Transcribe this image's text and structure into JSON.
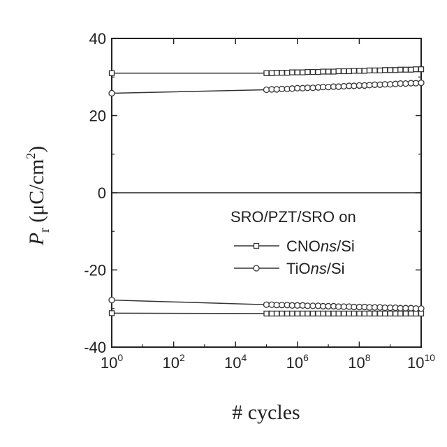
{
  "chart_data": {
    "type": "line",
    "xscale": "log",
    "xlabel": "# cycles",
    "ylabel": {
      "main": "P",
      "sub": "r",
      "unit": " (μC/cm",
      "unit_sup": "2",
      "unit_end": ")"
    },
    "xlim_log10": [
      0,
      10
    ],
    "ylim": [
      -40,
      40
    ],
    "xticks": [
      {
        "base": "10",
        "exp": "0",
        "v": 0
      },
      {
        "base": "10",
        "exp": "2",
        "v": 2
      },
      {
        "base": "10",
        "exp": "4",
        "v": 4
      },
      {
        "base": "10",
        "exp": "6",
        "v": 6
      },
      {
        "base": "10",
        "exp": "8",
        "v": 8
      },
      {
        "base": "10",
        "exp": "10",
        "v": 10
      }
    ],
    "yticks": [
      "-40",
      "-20",
      "0",
      "20",
      "40"
    ],
    "yticks_values": [
      -40,
      -20,
      0,
      20,
      40
    ],
    "zero_line": true,
    "legend": {
      "title": "SRO/PZT/SRO on",
      "placement": "center-right",
      "entries": [
        {
          "pre": "CNO",
          "ital": "ns",
          "post": "/Si",
          "marker": "square"
        },
        {
          "pre": "TiO",
          "ital": "ns",
          "post": "/Si",
          "marker": "circle"
        }
      ]
    },
    "x_log10": [
      0,
      5,
      5.17,
      5.33,
      5.5,
      5.67,
      5.83,
      6,
      6.17,
      6.33,
      6.5,
      6.67,
      6.83,
      7,
      7.17,
      7.33,
      7.5,
      7.67,
      7.83,
      8,
      8.17,
      8.33,
      8.5,
      8.67,
      8.83,
      9,
      9.17,
      9.33,
      9.5,
      9.67,
      9.83,
      10
    ],
    "series": [
      {
        "name": "CNOns/Si (+Pr)",
        "marker": "square",
        "values": [
          31.0,
          31.0,
          31.0,
          31.1,
          31.1,
          31.1,
          31.2,
          31.2,
          31.2,
          31.3,
          31.3,
          31.3,
          31.4,
          31.4,
          31.4,
          31.5,
          31.5,
          31.5,
          31.6,
          31.6,
          31.6,
          31.7,
          31.7,
          31.7,
          31.8,
          31.8,
          31.8,
          31.9,
          31.9,
          31.9,
          32.0,
          32.0
        ]
      },
      {
        "name": "TiOns/Si (+Pr)",
        "marker": "circle",
        "values": [
          25.8,
          26.7,
          26.8,
          26.8,
          26.9,
          26.9,
          27.0,
          27.1,
          27.1,
          27.2,
          27.2,
          27.3,
          27.4,
          27.4,
          27.5,
          27.5,
          27.6,
          27.7,
          27.7,
          27.8,
          27.8,
          27.9,
          28.0,
          28.0,
          28.1,
          28.1,
          28.2,
          28.3,
          28.3,
          28.4,
          28.4,
          28.5
        ]
      },
      {
        "name": "CNOns/Si (-Pr)",
        "marker": "square",
        "values": [
          -31.2,
          -31.3,
          -31.3,
          -31.3,
          -31.3,
          -31.3,
          -31.3,
          -31.3,
          -31.3,
          -31.3,
          -31.3,
          -31.3,
          -31.3,
          -31.3,
          -31.3,
          -31.3,
          -31.3,
          -31.3,
          -31.3,
          -31.3,
          -31.3,
          -31.3,
          -31.3,
          -31.3,
          -31.3,
          -31.3,
          -31.3,
          -31.3,
          -31.3,
          -31.3,
          -31.3,
          -31.3
        ]
      },
      {
        "name": "TiOns/Si (-Pr)",
        "marker": "circle",
        "values": [
          -27.8,
          -29.0,
          -29.0,
          -29.1,
          -29.1,
          -29.1,
          -29.2,
          -29.2,
          -29.2,
          -29.3,
          -29.3,
          -29.3,
          -29.4,
          -29.4,
          -29.4,
          -29.5,
          -29.5,
          -29.5,
          -29.6,
          -29.6,
          -29.6,
          -29.7,
          -29.7,
          -29.7,
          -29.8,
          -29.8,
          -29.8,
          -29.9,
          -29.9,
          -29.9,
          -30.0,
          -30.0
        ]
      }
    ],
    "colors": {
      "line": "#333333",
      "marker_fill": "#ffffff"
    }
  }
}
